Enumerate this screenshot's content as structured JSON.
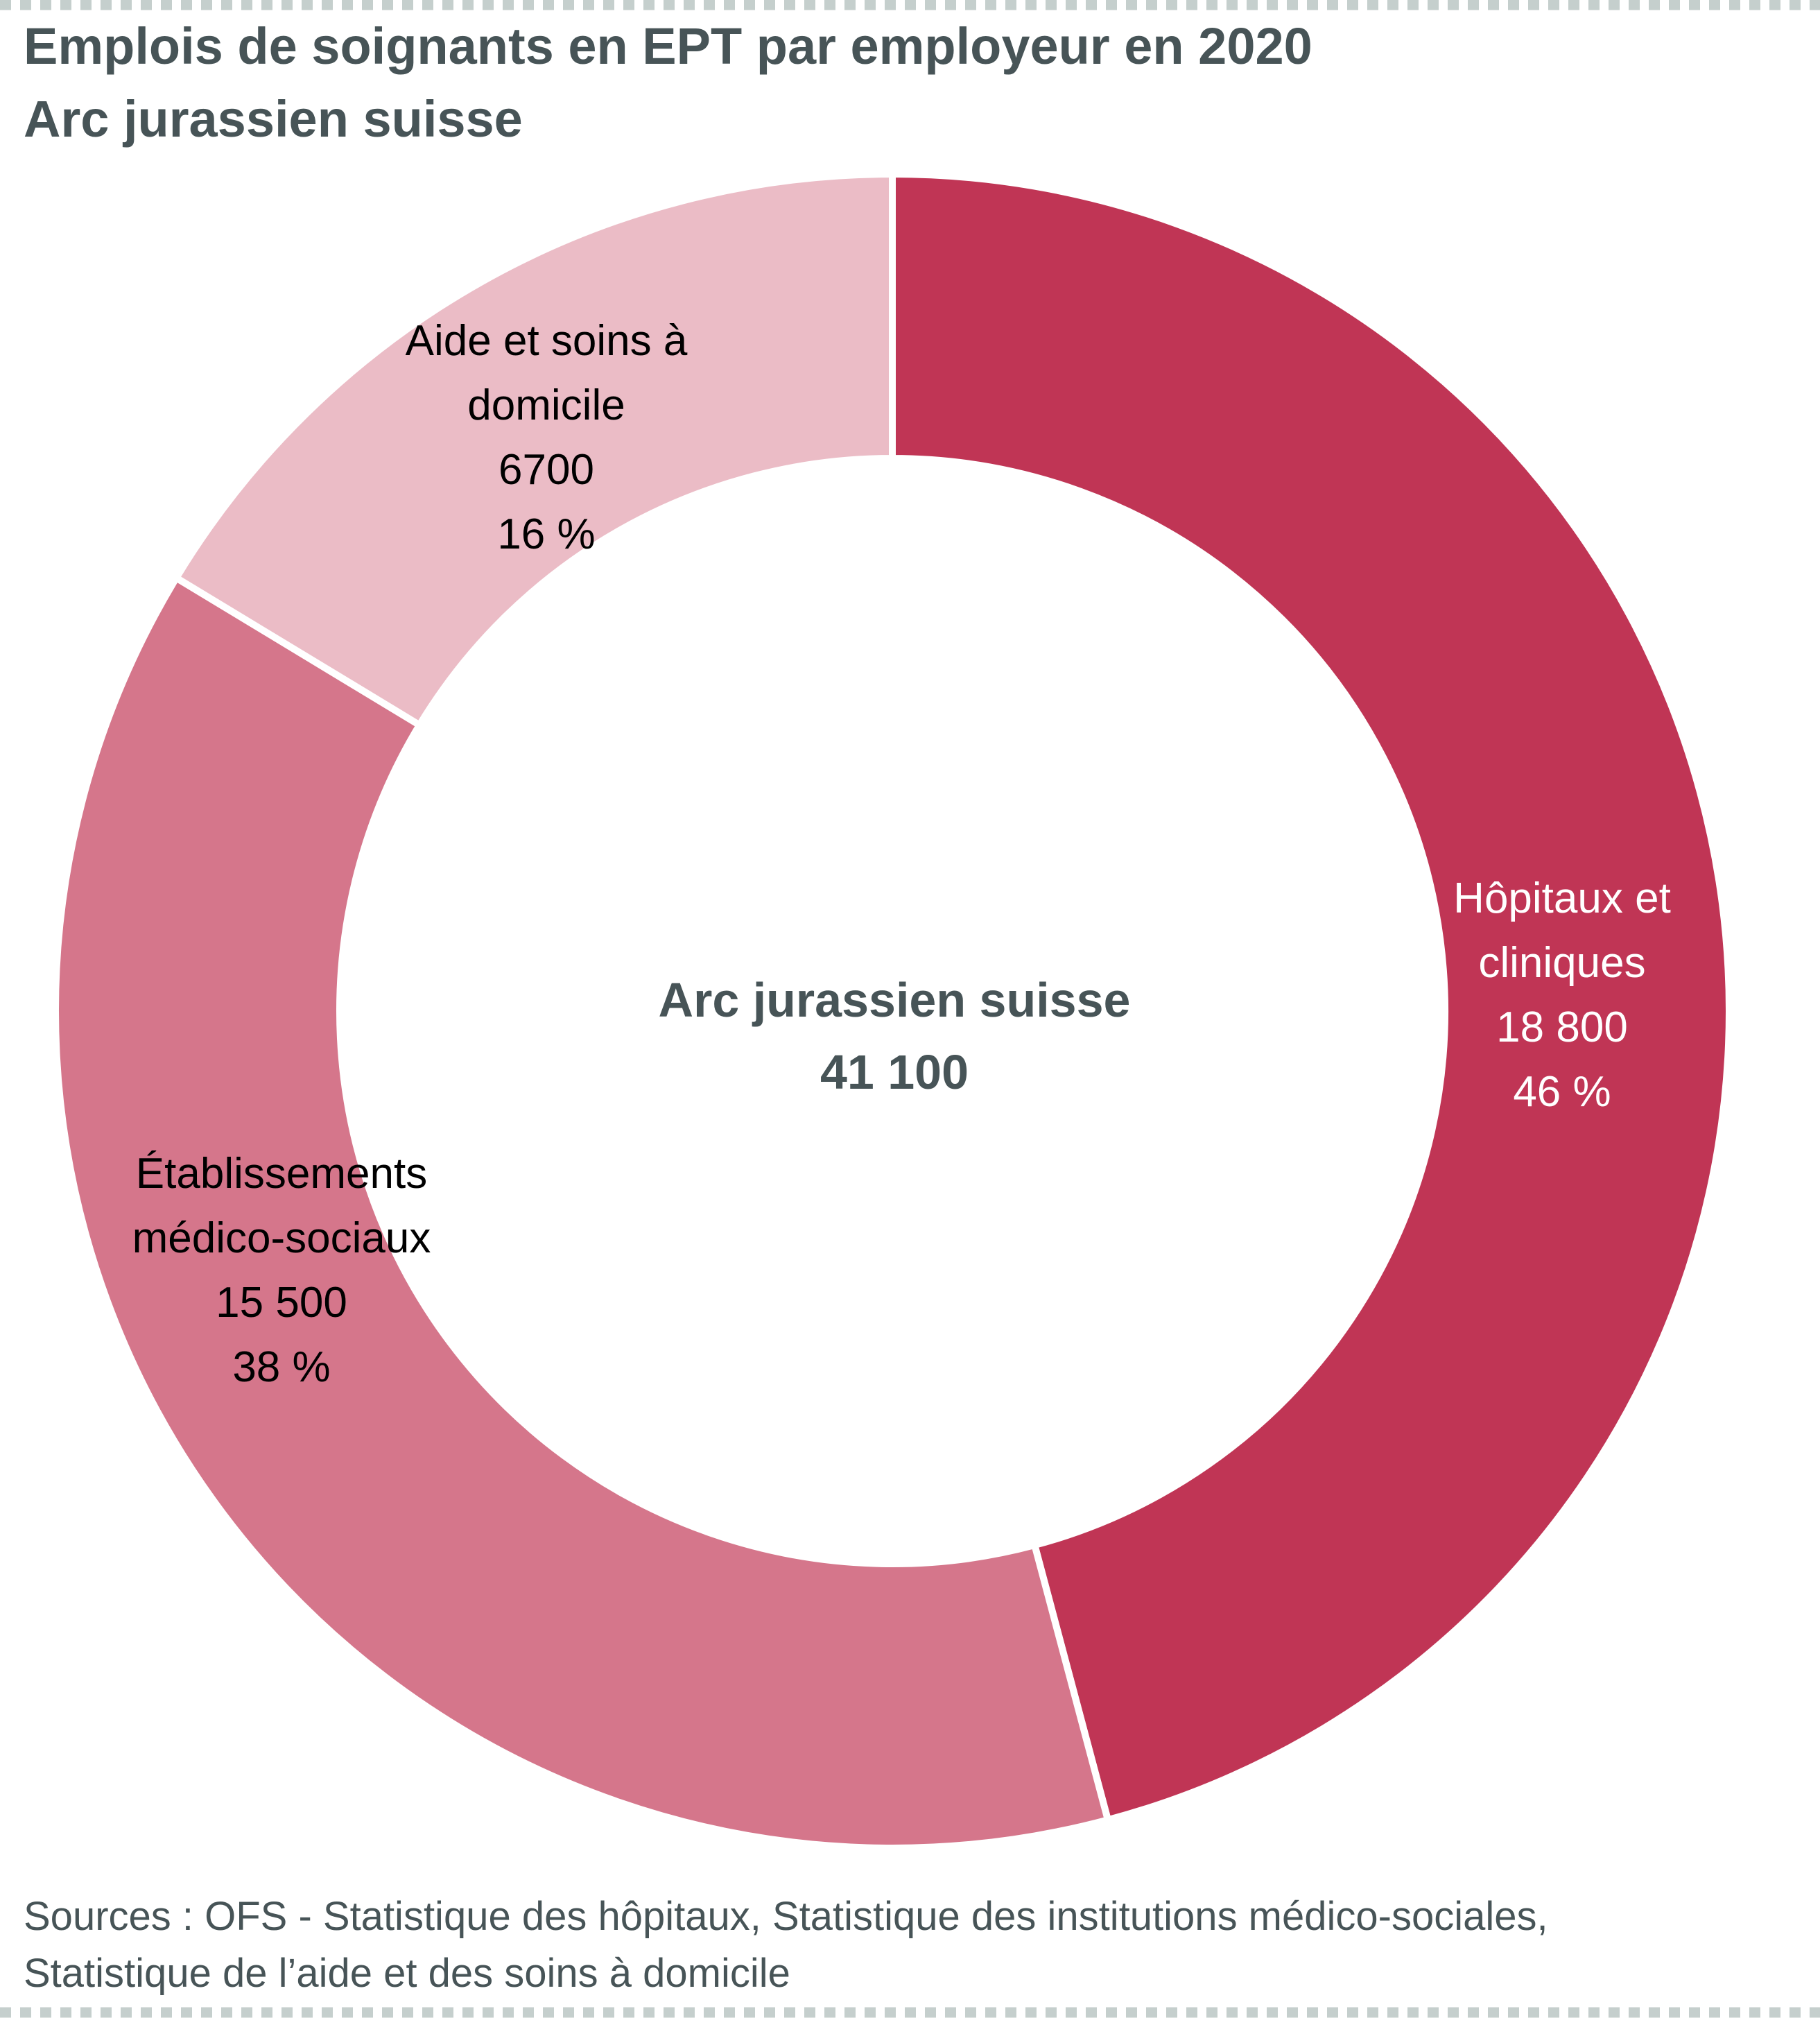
{
  "chart_data": {
    "type": "pie",
    "variant": "donut",
    "title": "Emplois de soignants en EPT par employeur en 2020",
    "subtitle": "Arc jurassien suisse",
    "center_label": "Arc jurassien suisse",
    "center_value": "41 100",
    "total": 41100,
    "slices": [
      {
        "name_lines": [
          "Hôpitaux et",
          "cliniques"
        ],
        "value": 18800,
        "value_label": "18 800",
        "percent_label": "46 %",
        "color": "#C03555",
        "text_color": "#FFFFFF"
      },
      {
        "name_lines": [
          "Établissements",
          "médico-sociaux"
        ],
        "value": 15500,
        "value_label": "15 500",
        "percent_label": "38 %",
        "color": "#D5768B",
        "text_color": "#000000"
      },
      {
        "name_lines": [
          "Aide et soins à",
          "domicile"
        ],
        "value": 6700,
        "value_label": "6700",
        "percent_label": "16 %",
        "color": "#EBBCC6",
        "text_color": "#000000"
      }
    ],
    "start_angle": "12 o'clock",
    "direction": "clockwise"
  },
  "source_lines": [
    "Sources : OFS - Statistique des hôpitaux, Statistique des institutions médico-sociales,",
    "Statistique de l’aide et des soins à domicile"
  ],
  "colors": {
    "text": "#475457",
    "border": "#C5CFCD"
  }
}
